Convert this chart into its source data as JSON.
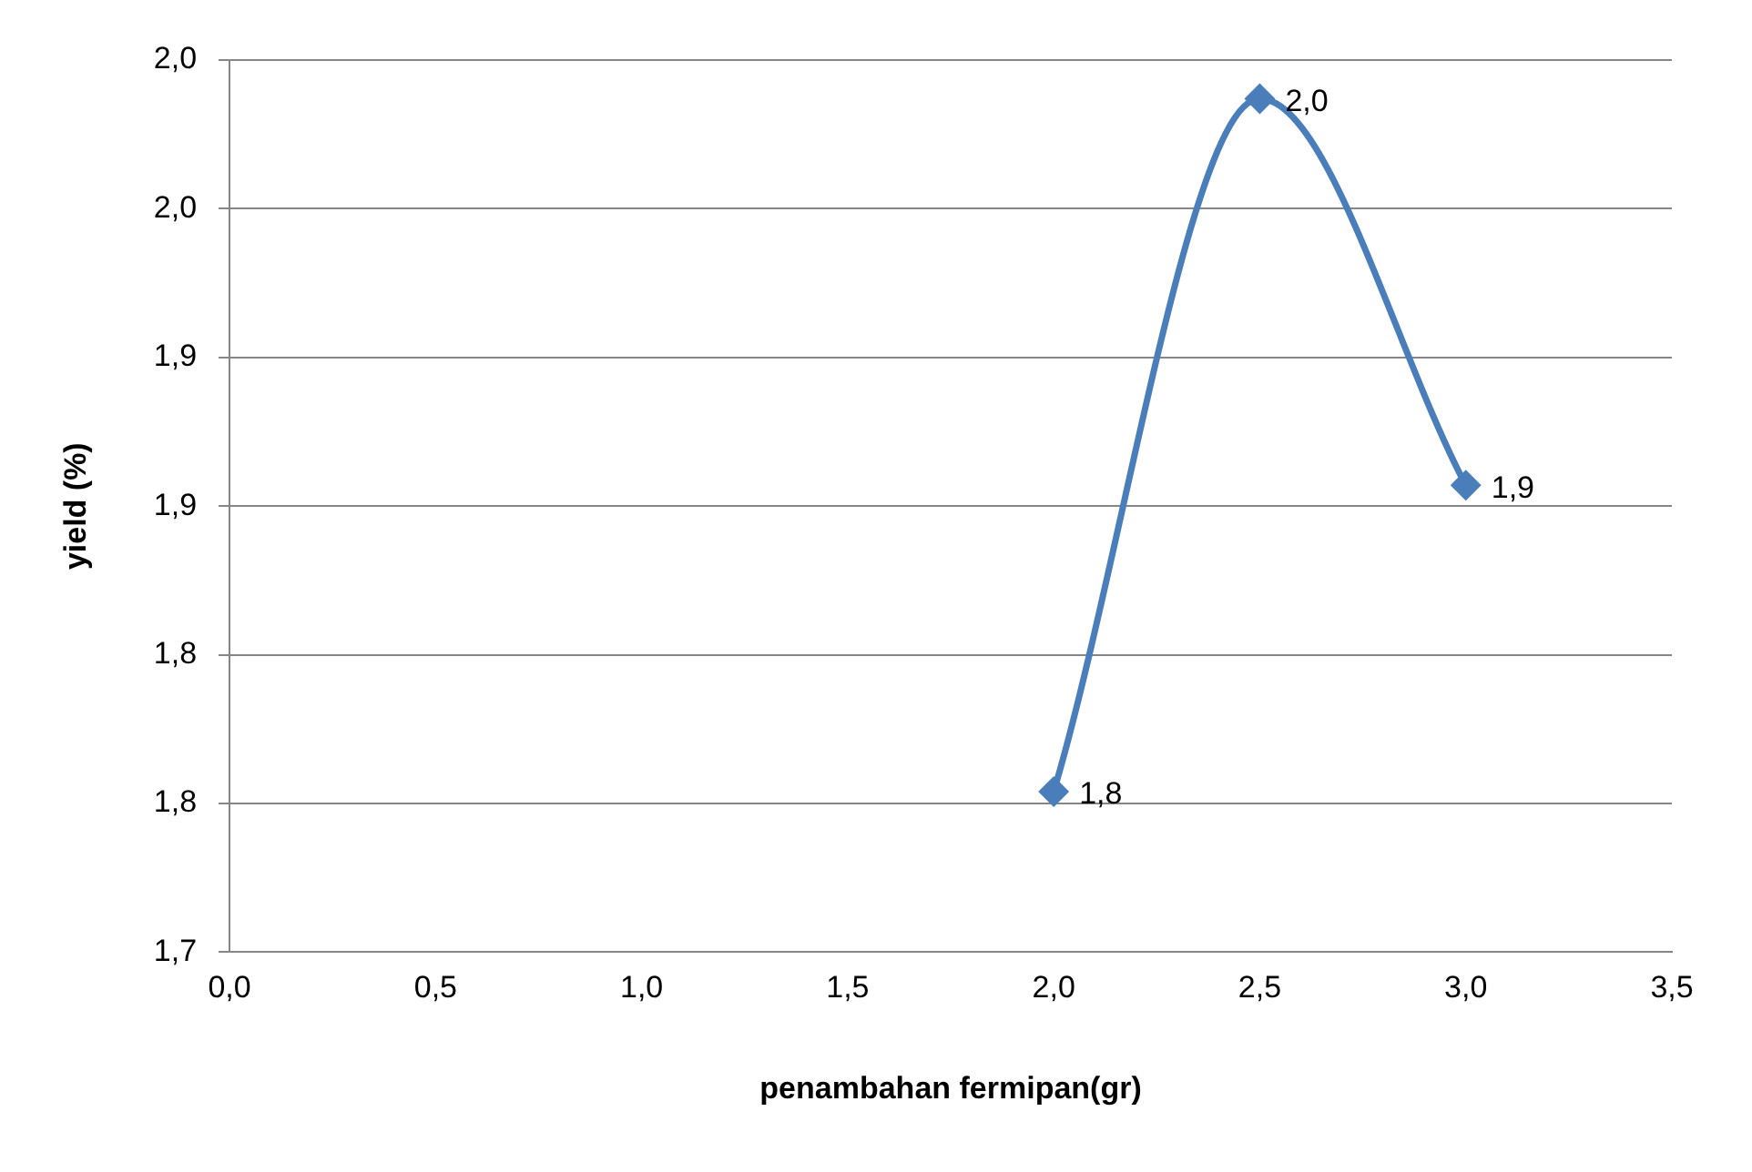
{
  "chart_data": {
    "type": "line",
    "xlabel": "penambahan fermipan(gr)",
    "ylabel": "yield (%)",
    "x": [
      2.0,
      2.5,
      3.0
    ],
    "series": [
      {
        "color": "#4a7ebb",
        "values": [
          1.754,
          1.987,
          1.857
        ],
        "value_labels": [
          "1,8",
          "2,0",
          "1,9"
        ]
      }
    ],
    "xlim": [
      0,
      3.5
    ],
    "xticks": [
      {
        "value": 0,
        "label": "0,0"
      },
      {
        "value": 0.5,
        "label": "0,5"
      },
      {
        "value": 1,
        "label": "1,0"
      },
      {
        "value": 1.5,
        "label": "1,5"
      },
      {
        "value": 2,
        "label": "2,0"
      },
      {
        "value": 2.5,
        "label": "2,5"
      },
      {
        "value": 3,
        "label": "3,0"
      },
      {
        "value": 3.5,
        "label": "3,5"
      }
    ],
    "ylim": [
      1.7,
      2.0
    ],
    "yticks": [
      {
        "value": 1.7,
        "label": "1,7"
      },
      {
        "value": 1.75,
        "label": "1,8"
      },
      {
        "value": 1.8,
        "label": "1,8"
      },
      {
        "value": 1.85,
        "label": "1,9"
      },
      {
        "value": 1.9,
        "label": "1,9"
      },
      {
        "value": 1.95,
        "label": "2,0"
      },
      {
        "value": 2.0,
        "label": "2,0"
      }
    ],
    "grid": "y",
    "legend": false,
    "marker": "diamond",
    "line_style": "solid"
  }
}
